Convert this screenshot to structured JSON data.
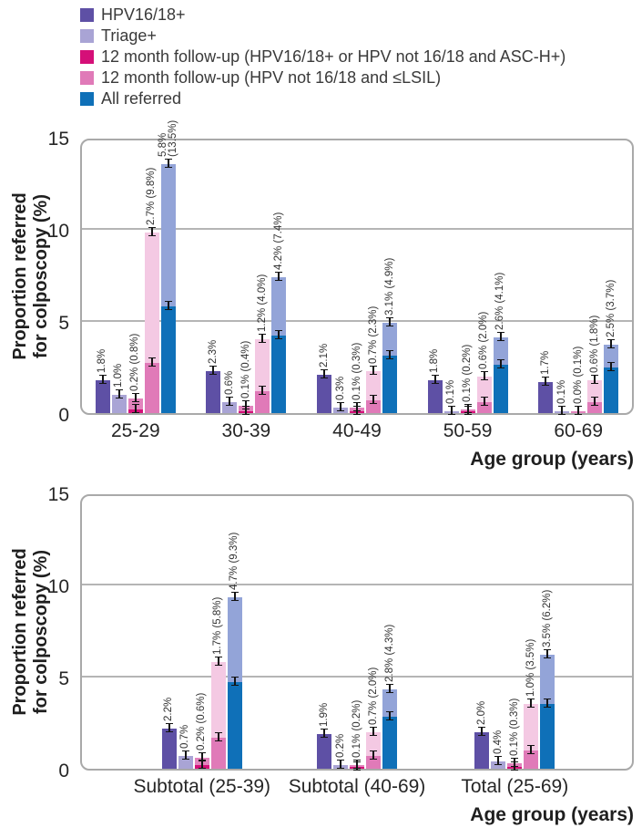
{
  "chart_data": {
    "type": "bar",
    "title": "",
    "ylabel": "Proportion referred\nfor colposcopy (%)",
    "xlabel": "Age group (years)",
    "ylim": [
      0,
      15
    ],
    "yticks": [
      0,
      5,
      10,
      15
    ],
    "grid": "horizontal gridlines at 5 and 10, rounded light-gray frame",
    "legend_position": "top-left",
    "bar_style": "two-tone bars: solid lower value with lighter tinted upper value shown as 'solid% (light%)'; black error bars at each value",
    "series": [
      {
        "name": "HPV16/18+",
        "color": "#5e50a5",
        "tint": null
      },
      {
        "name": "Triage+",
        "color": "#a9a4d5",
        "tint": null
      },
      {
        "name": "12 month follow-up (HPV16/18+ or HPV not 16/18 and ASC-H+)",
        "color": "#d50f78",
        "tint": "#e283bd"
      },
      {
        "name": "12 month follow-up (HPV not 16/18 and ≤LSIL)",
        "color": "#e07ab8",
        "tint": "#f4c9e3"
      },
      {
        "name": "All referred",
        "color": "#0f70b8",
        "tint": "#93a4d8"
      }
    ],
    "panels": [
      {
        "groups": [
          {
            "category": "25-29",
            "bars": [
              {
                "value": 1.8,
                "label": "1.8%"
              },
              {
                "value": 1.0,
                "label": "1.0%"
              },
              {
                "value": 0.2,
                "value_light": 0.8,
                "label": "0.2% (0.8%)"
              },
              {
                "value": 2.7,
                "value_light": 9.8,
                "label": "2.7% (9.8%)"
              },
              {
                "value": 5.8,
                "value_light": 13.5,
                "label": "5.8%\n(13.5%)"
              }
            ]
          },
          {
            "category": "30-39",
            "bars": [
              {
                "value": 2.3,
                "label": "2.3%"
              },
              {
                "value": 0.6,
                "label": "0.6%"
              },
              {
                "value": 0.1,
                "value_light": 0.4,
                "label": "0.1% (0.4%)"
              },
              {
                "value": 1.2,
                "value_light": 4.0,
                "label": "1.2% (4.0%)"
              },
              {
                "value": 4.2,
                "value_light": 7.4,
                "label": "4.2% (7.4%)"
              }
            ]
          },
          {
            "category": "40-49",
            "bars": [
              {
                "value": 2.1,
                "label": "2.1%"
              },
              {
                "value": 0.3,
                "label": "0.3%"
              },
              {
                "value": 0.1,
                "value_light": 0.3,
                "label": "0.1% (0.3%)"
              },
              {
                "value": 0.7,
                "value_light": 2.3,
                "label": "0.7% (2.3%)"
              },
              {
                "value": 3.1,
                "value_light": 4.9,
                "label": "3.1% (4.9%)"
              }
            ]
          },
          {
            "category": "50-59",
            "bars": [
              {
                "value": 1.8,
                "label": "1.8%"
              },
              {
                "value": 0.1,
                "label": "0.1%"
              },
              {
                "value": 0.1,
                "value_light": 0.2,
                "label": "0.1% (0.2%)"
              },
              {
                "value": 0.6,
                "value_light": 2.0,
                "label": "0.6% (2.0%)"
              },
              {
                "value": 2.6,
                "value_light": 4.1,
                "label": "2.6% (4.1%)"
              }
            ]
          },
          {
            "category": "60-69",
            "bars": [
              {
                "value": 1.7,
                "label": "1.7%"
              },
              {
                "value": 0.1,
                "label": "0.1%"
              },
              {
                "value": 0.0,
                "value_light": 0.1,
                "label": "0.0% (0.1%)"
              },
              {
                "value": 0.6,
                "value_light": 1.8,
                "label": "0.6% (1.8%)"
              },
              {
                "value": 2.5,
                "value_light": 3.7,
                "label": "2.5% (3.7%)"
              }
            ]
          }
        ]
      },
      {
        "groups": [
          {
            "category": "Subtotal (25-39)",
            "bars": [
              {
                "value": 2.2,
                "label": "2.2%"
              },
              {
                "value": 0.7,
                "label": "0.7%"
              },
              {
                "value": 0.2,
                "value_light": 0.6,
                "label": "0.2% (0.6%)"
              },
              {
                "value": 1.7,
                "value_light": 5.8,
                "label": "1.7% (5.8%)"
              },
              {
                "value": 4.7,
                "value_light": 9.3,
                "label": "4.7% (9.3%)"
              }
            ]
          },
          {
            "category": "Subtotal (40-69)",
            "bars": [
              {
                "value": 1.9,
                "label": "1.9%"
              },
              {
                "value": 0.2,
                "label": "0.2%"
              },
              {
                "value": 0.1,
                "value_light": 0.2,
                "label": "0.1% (0.2%)"
              },
              {
                "value": 0.7,
                "value_light": 2.0,
                "label": "0.7% (2.0%)"
              },
              {
                "value": 2.8,
                "value_light": 4.3,
                "label": "2.8% (4.3%)"
              }
            ]
          },
          {
            "category": "Total (25-69)",
            "bars": [
              {
                "value": 2.0,
                "label": "2.0%"
              },
              {
                "value": 0.4,
                "label": "0.4%"
              },
              {
                "value": 0.1,
                "value_light": 0.3,
                "label": "0.1% (0.3%)"
              },
              {
                "value": 1.0,
                "value_light": 3.5,
                "label": "1.0% (3.5%)"
              },
              {
                "value": 3.5,
                "value_light": 6.2,
                "label": "3.5% (6.2%)"
              }
            ]
          }
        ]
      }
    ]
  }
}
